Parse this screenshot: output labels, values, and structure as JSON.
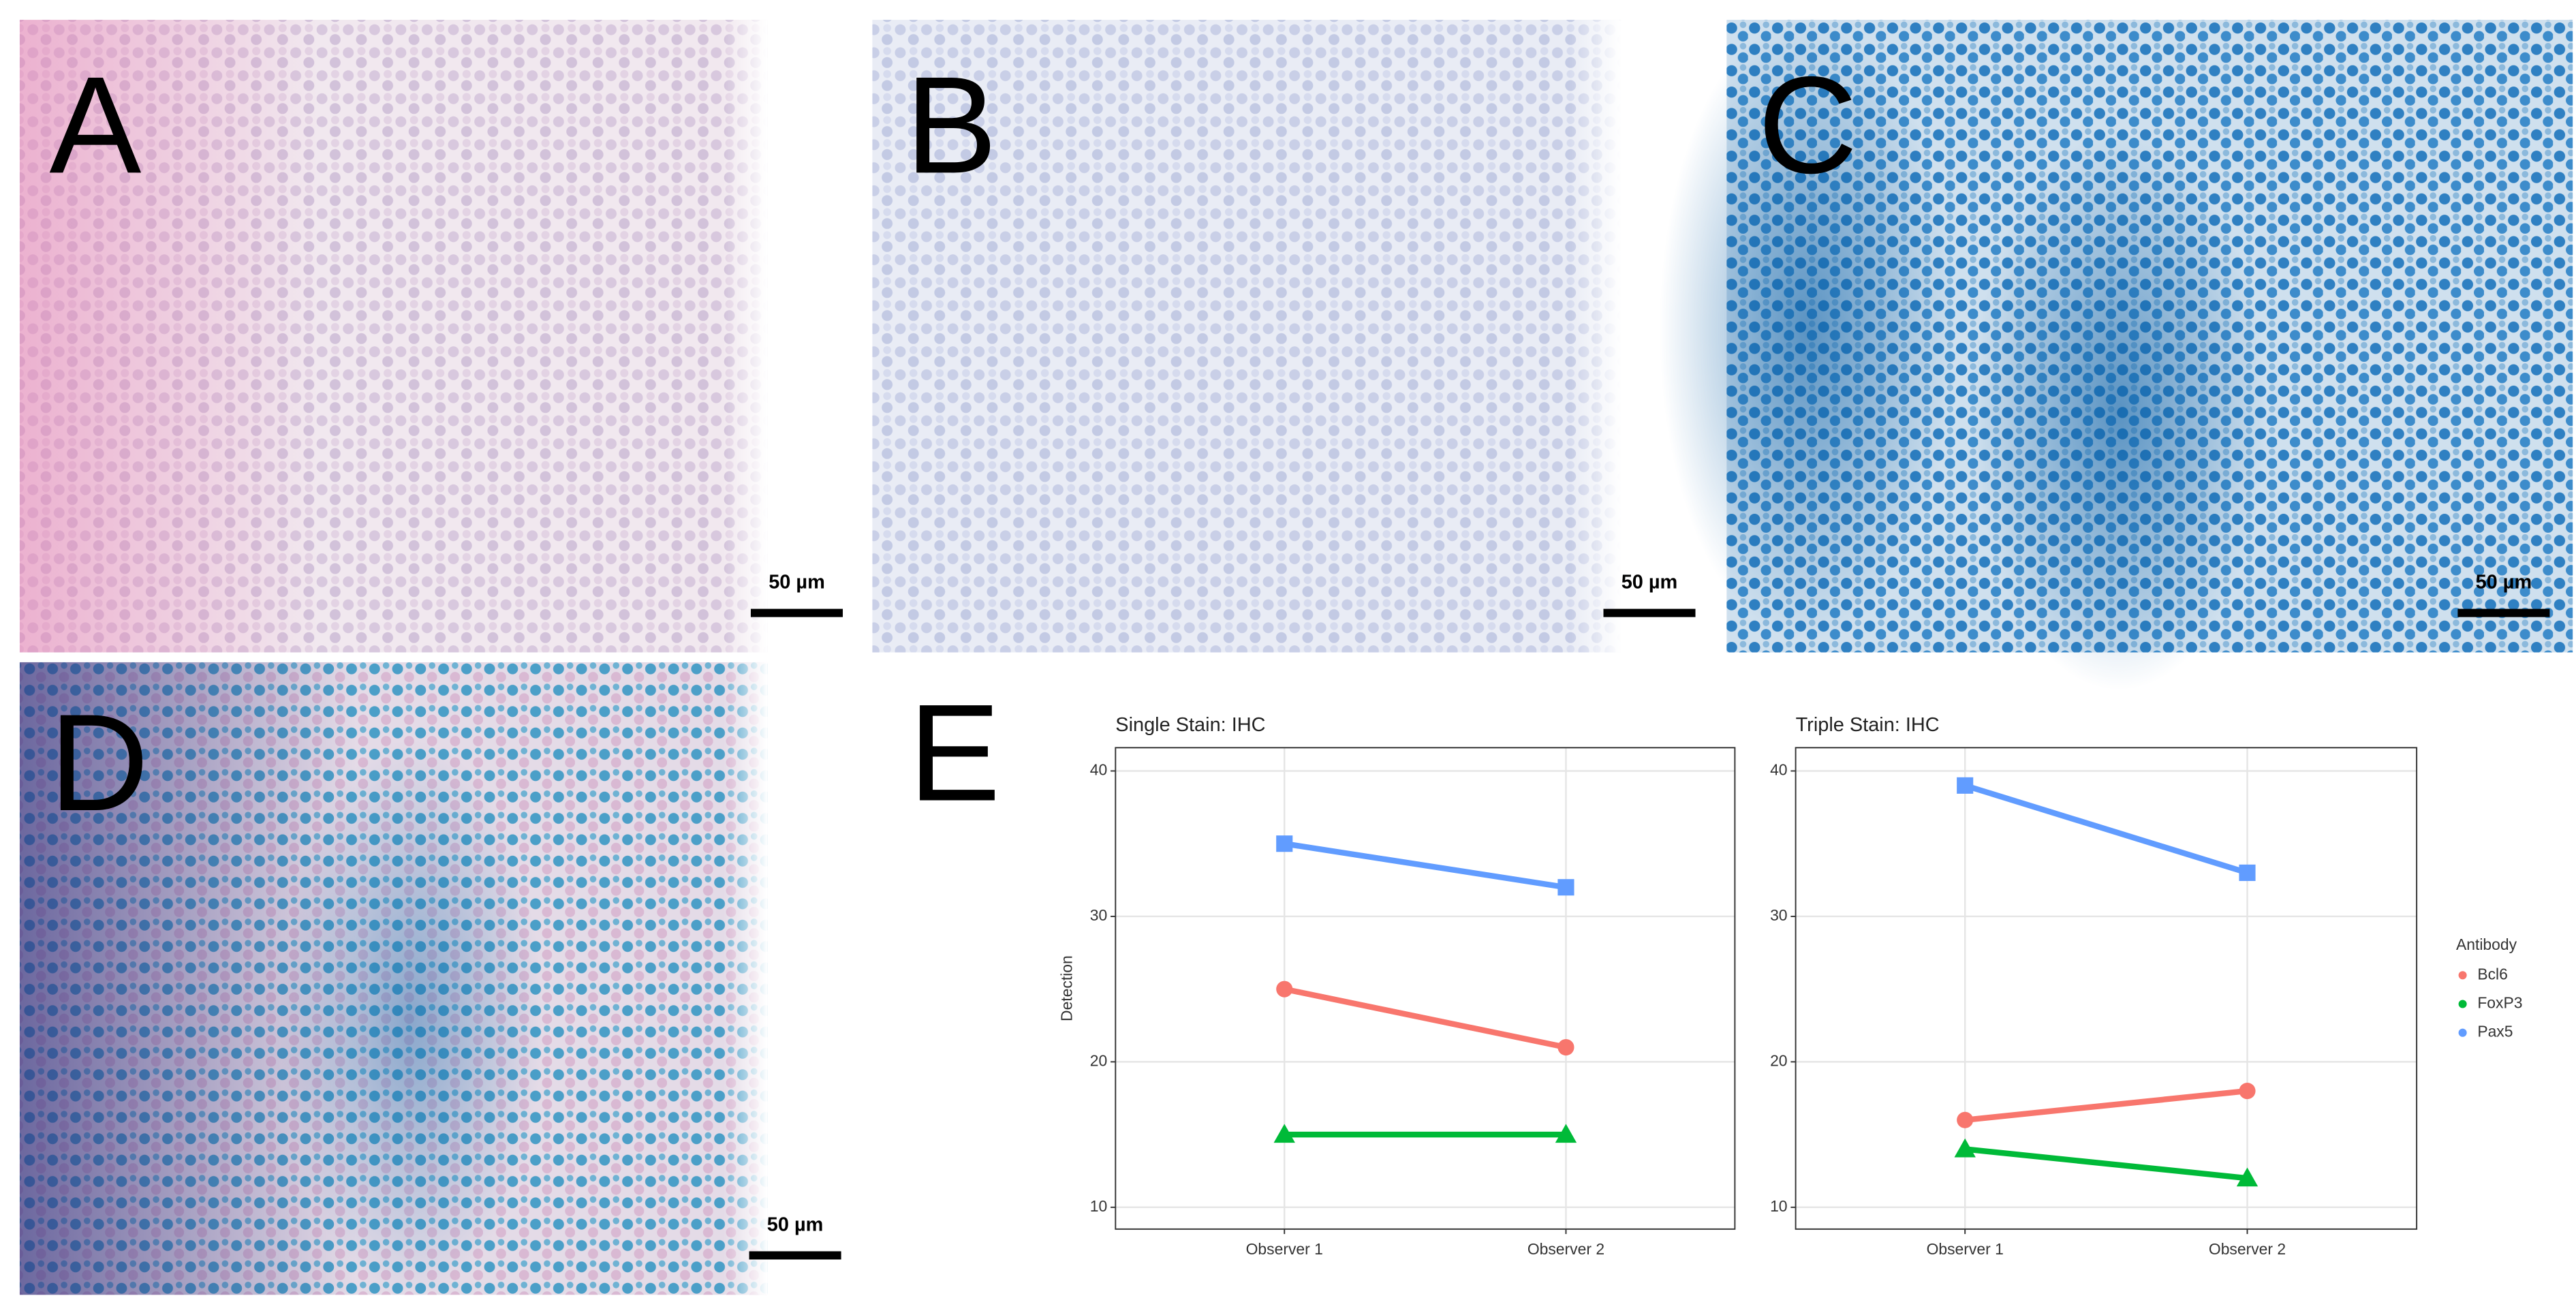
{
  "panels": [
    {
      "label": "A",
      "scale_bar": "50 µm"
    },
    {
      "label": "B",
      "scale_bar": "50 µm"
    },
    {
      "label": "C",
      "scale_bar": "50 µm"
    },
    {
      "label": "D",
      "scale_bar": "50 µm"
    },
    {
      "label": "E"
    }
  ],
  "chart_data": [
    {
      "type": "line",
      "title": "Single Stain: IHC",
      "y_label": "Detection",
      "categories": [
        "Observer 1",
        "Observer 2"
      ],
      "series": [
        {
          "name": "Bcl6",
          "color": "#f8766d",
          "marker": "circle",
          "values": [
            25,
            21
          ]
        },
        {
          "name": "FoxP3",
          "color": "#00ba38",
          "marker": "triangle",
          "values": [
            15,
            15
          ]
        },
        {
          "name": "Pax5",
          "color": "#619cff",
          "marker": "square",
          "values": [
            35,
            32
          ]
        }
      ],
      "ylim": [
        8.5,
        41.6
      ],
      "yticks": [
        10,
        20,
        30,
        40
      ],
      "grid": true
    },
    {
      "type": "line",
      "title": "Triple Stain: IHC",
      "categories": [
        "Observer 1",
        "Observer 2"
      ],
      "series": [
        {
          "name": "Bcl6",
          "color": "#f8766d",
          "marker": "circle",
          "values": [
            16,
            18
          ]
        },
        {
          "name": "FoxP3",
          "color": "#00ba38",
          "marker": "triangle",
          "values": [
            14,
            12
          ]
        },
        {
          "name": "Pax5",
          "color": "#619cff",
          "marker": "square",
          "values": [
            39,
            33
          ]
        }
      ],
      "ylim": [
        8.5,
        41.6
      ],
      "yticks": [
        10,
        20,
        30,
        40
      ],
      "grid": true,
      "legend": {
        "title": "Antibody",
        "position": "right"
      }
    }
  ]
}
